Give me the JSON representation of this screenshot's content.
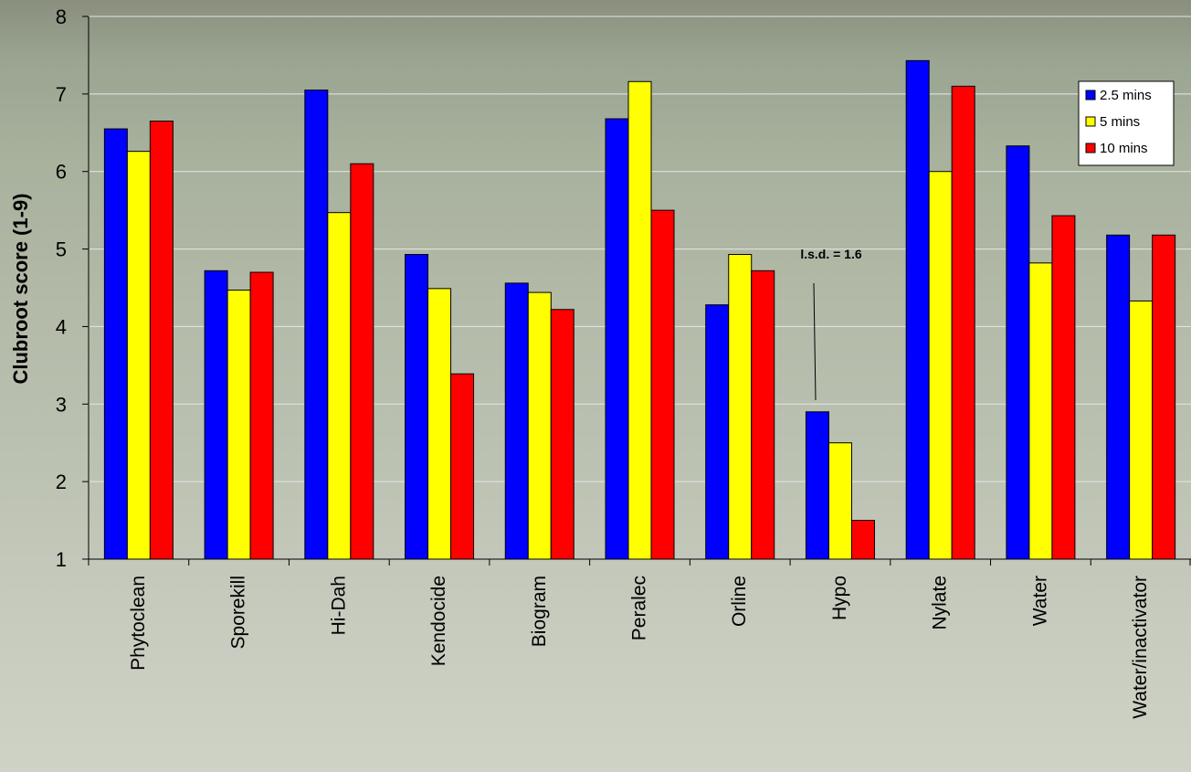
{
  "chart_data": {
    "type": "bar",
    "title": "",
    "xlabel": "",
    "ylabel": "Clubroot score (1-9)",
    "ylim": [
      1,
      8
    ],
    "yticks": [
      1,
      2,
      3,
      4,
      5,
      6,
      7,
      8
    ],
    "grid": true,
    "legend_position": "top-right",
    "categories": [
      "Phytoclean",
      "Sporekill",
      "Hi-Dah",
      "Kendocide",
      "Biogram",
      "Peralec",
      "Orline",
      "Hypo",
      "Nylate",
      "Water",
      "Water/inactivator"
    ],
    "series": [
      {
        "name": "2.5 mins",
        "color": "#0000ff",
        "values": [
          6.55,
          4.72,
          7.05,
          4.93,
          4.56,
          6.68,
          4.28,
          2.9,
          7.43,
          6.33,
          5.18
        ]
      },
      {
        "name": "5 mins",
        "color": "#ffff00",
        "values": [
          6.26,
          4.47,
          5.47,
          4.49,
          4.44,
          7.16,
          4.93,
          2.5,
          6.0,
          4.82,
          4.33
        ]
      },
      {
        "name": "10 mins",
        "color": "#ff0000",
        "values": [
          6.65,
          4.7,
          6.1,
          3.39,
          4.22,
          5.5,
          4.72,
          1.5,
          7.1,
          5.43,
          5.18
        ]
      }
    ],
    "annotations": [
      {
        "text": "l.s.d. = 1.6"
      }
    ]
  }
}
